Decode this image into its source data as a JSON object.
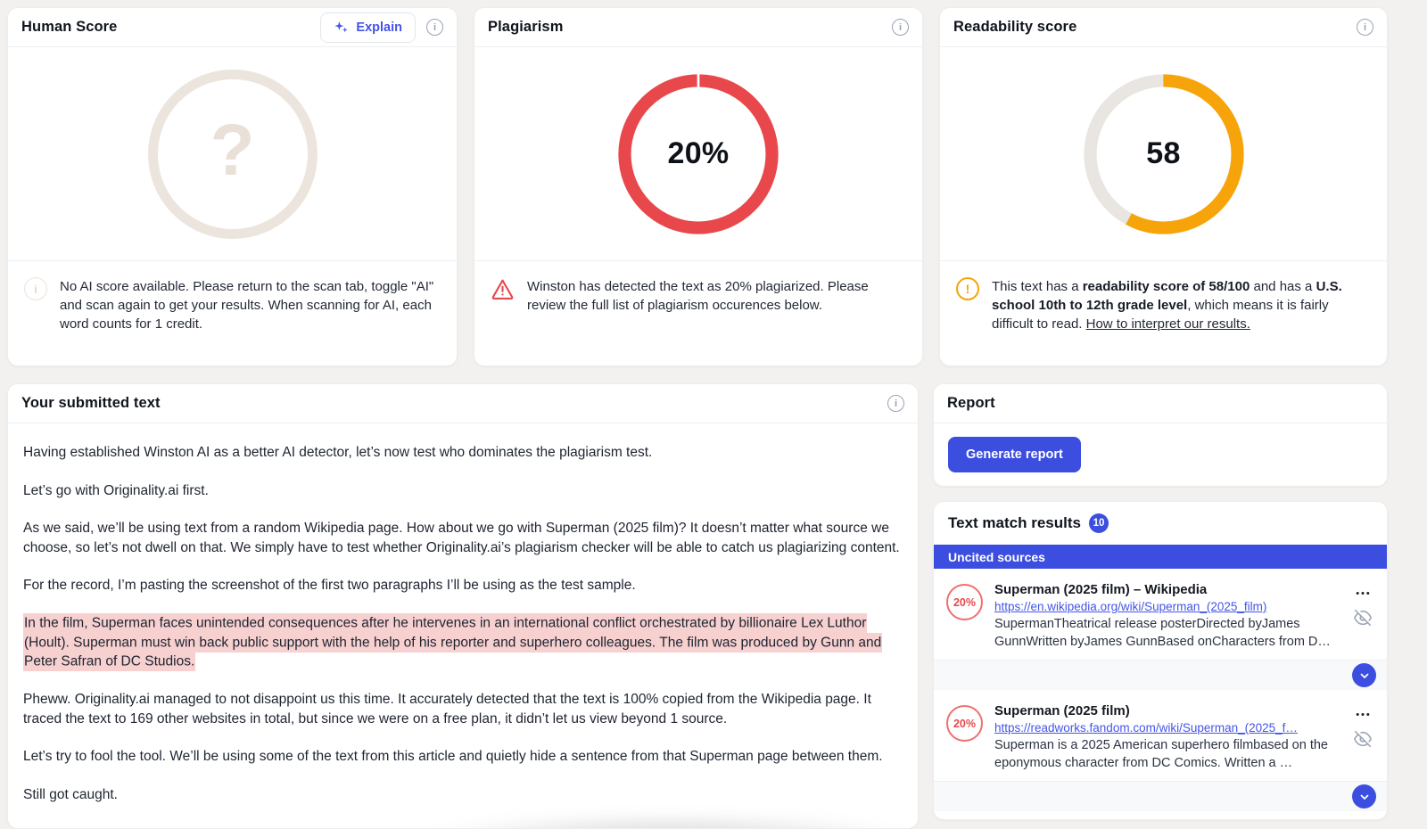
{
  "colors": {
    "accent_blue": "#3c4ee0",
    "link_blue": "#4355e8",
    "alert_red": "#e8484c",
    "warn_orange": "#f7a40a",
    "highlight_pink": "#f7d0d0",
    "track_gray": "#e9e5e0",
    "placeholder_beige": "#ece5dd"
  },
  "icons": {
    "explain": "sparkles-icon",
    "info": "info-circle-icon",
    "warning": "warning-triangle-icon",
    "readability_warn": "alert-circle-icon",
    "more": "ellipsis-icon",
    "exclude": "eye-off-icon",
    "expand": "chevron-down-icon"
  },
  "human_score": {
    "title": "Human Score",
    "explain_label": "Explain",
    "placeholder_value": "?",
    "note": "No AI score available. Please return to the scan tab, toggle \"AI\" and scan again to get your results. When scanning for AI, each word counts for 1 credit."
  },
  "plagiarism": {
    "title": "Plagiarism",
    "percent": 20,
    "percent_label": "20%",
    "note": "Winston has detected the text as 20% plagiarized. Please review the full list of plagiarism occurences below."
  },
  "readability": {
    "title": "Readability score",
    "score": 58,
    "score_label": "58",
    "note_part1": "This text has a ",
    "bold1": "readability score of 58/100",
    "note_part2": " and has a ",
    "bold2": "U.S. school 10th to 12th grade level",
    "note_part3": ", which means it is fairly difficult to read. ",
    "link_label": "How to interpret our results."
  },
  "submitted_text": {
    "title": "Your submitted text",
    "paragraphs": [
      {
        "text": "Having established Winston AI as a better AI detector, let’s now test who dominates the plagiarism test.",
        "highlight": false
      },
      {
        "text": "Let’s go with Originality.ai first.",
        "highlight": false
      },
      {
        "text": "As we said, we’ll be using text from a random Wikipedia page. How about we go with Superman (2025 film)? It doesn’t matter what source we choose, so let’s not dwell on that. We simply have to test whether Originality.ai’s plagiarism checker will be able to catch us plagiarizing content.",
        "highlight": false
      },
      {
        "text": "For the record, I’m pasting the screenshot of the first two paragraphs I’ll be using as the test sample.",
        "highlight": false
      },
      {
        "text": "In the film, Superman faces unintended consequences after he intervenes in an international conflict orchestrated by billionaire Lex Luthor (Hoult). Superman must win back public support with the help of his reporter and superhero colleagues. The film was produced by Gunn and Peter Safran of DC Studios.",
        "highlight": true
      },
      {
        "text": "Pheww. Originality.ai managed to not disappoint us this time. It accurately detected that the text is 100% copied from the Wikipedia page. It traced the text to 169 other websites in total, but since we were on a free plan, it didn’t let us view beyond 1 source.",
        "highlight": false
      },
      {
        "text": "Let’s try to fool the tool. We’ll be using some of the text from this article and quietly hide a sentence from that Superman page between them.",
        "highlight": false
      },
      {
        "text": "Still got caught.",
        "highlight": false
      }
    ]
  },
  "report": {
    "title": "Report",
    "generate_label": "Generate report"
  },
  "text_match": {
    "title": "Text match results",
    "count": "10",
    "section_label": "Uncited sources",
    "sources": [
      {
        "percent": "20%",
        "title": "Superman (2025 film) – Wikipedia",
        "url": "https://en.wikipedia.org/wiki/Superman_(2025_film)",
        "snippet": "SupermanTheatrical release posterDirected byJames GunnWritten byJames GunnBased onCharacters from D…"
      },
      {
        "percent": "20%",
        "title": "Superman (2025 film)",
        "url": "https://readworks.fandom.com/wiki/Superman_(2025_f…",
        "snippet": "Superman is a 2025 American superhero filmbased on the eponymous character from DC Comics. Written a …"
      }
    ]
  },
  "chart_data": [
    {
      "type": "donut",
      "title": "Plagiarism",
      "value": 20,
      "max": 100,
      "center_label": "20%",
      "ring_color": "#e8484c",
      "note": "ring rendered fully red with a thin white divider notch at 12 o'clock"
    },
    {
      "type": "donut",
      "title": "Readability score",
      "value": 58,
      "max": 100,
      "center_label": "58",
      "ring_color": "#f7a40a",
      "track_color": "#e9e5e0",
      "note": "orange arc starts at top, clockwise, covers 58% of circle"
    }
  ]
}
